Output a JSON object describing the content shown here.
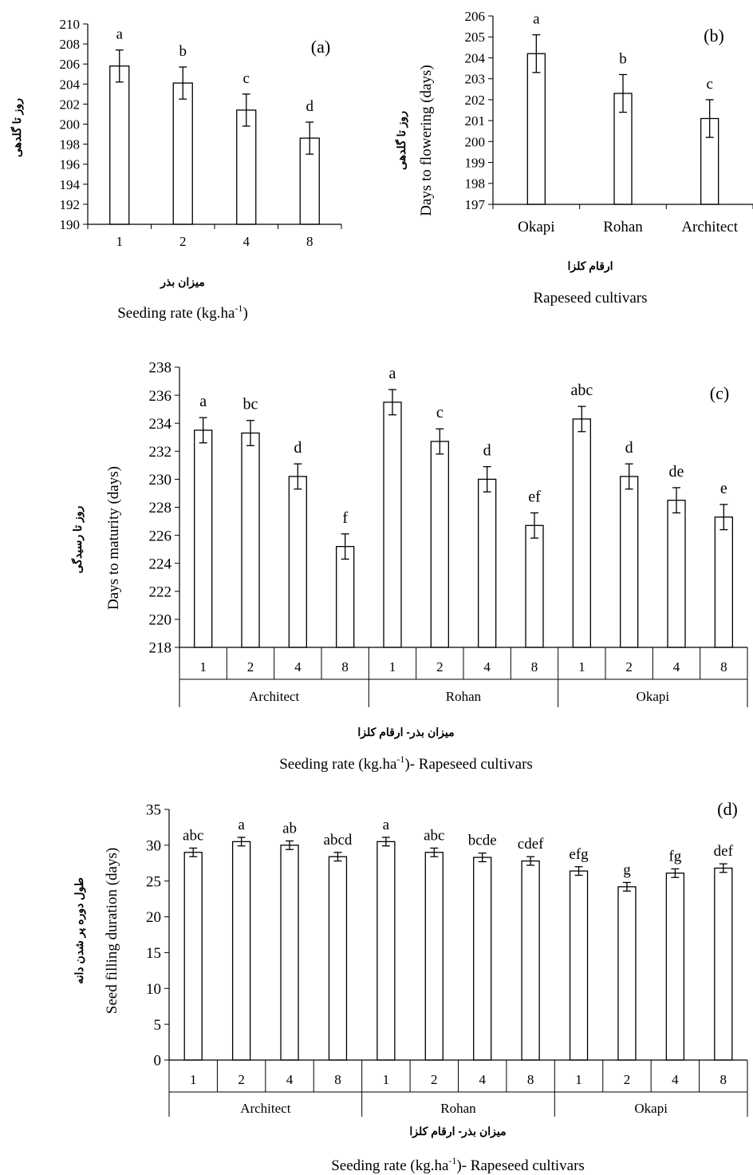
{
  "colors": {
    "bar_fill": "#ffffff",
    "stroke": "#000000",
    "background": "#ffffff"
  },
  "chart_data": [
    {
      "id": "a",
      "type": "bar",
      "panel_label": "(a)",
      "categories": [
        "1",
        "2",
        "4",
        "8"
      ],
      "values": [
        205.8,
        204.1,
        201.4,
        198.6
      ],
      "errors": [
        1.6,
        1.6,
        1.6,
        1.6
      ],
      "letters": [
        "a",
        "b",
        "c",
        "d"
      ],
      "ylim": [
        190,
        210
      ],
      "yticks": [
        190,
        192,
        194,
        196,
        198,
        200,
        202,
        204,
        206,
        208,
        210
      ],
      "ylabel_fa": "روز تا گلدهی",
      "ylabel_en": "",
      "xlabel_fa": "میزان بذر",
      "xlabel_en": "Seeding rate (kg.ha-1)",
      "xlabel_en_main": "Seeding rate (kg.ha",
      "xlabel_en_sup": "-1",
      "xlabel_en_tail": ")",
      "groups": [],
      "grid": false
    },
    {
      "id": "b",
      "type": "bar",
      "panel_label": "(b)",
      "categories": [
        "Okapi",
        "Rohan",
        "Architect"
      ],
      "values": [
        204.2,
        202.3,
        201.1
      ],
      "errors": [
        0.9,
        0.9,
        0.9
      ],
      "letters": [
        "a",
        "b",
        "c"
      ],
      "ylim": [
        197,
        206
      ],
      "yticks": [
        197,
        198,
        199,
        200,
        201,
        202,
        203,
        204,
        205,
        206
      ],
      "ylabel_fa": "روز تا گلدهی",
      "ylabel_en": "Days to flowering (days)",
      "xlabel_fa": "ارقام کلزا",
      "xlabel_en": "Rapeseed cultivars",
      "groups": [],
      "grid": false
    },
    {
      "id": "c",
      "type": "bar",
      "panel_label": "(c)",
      "categories": [
        "1",
        "2",
        "4",
        "8",
        "1",
        "2",
        "4",
        "8",
        "1",
        "2",
        "4",
        "8"
      ],
      "values": [
        233.5,
        233.3,
        230.2,
        225.2,
        235.5,
        232.7,
        230.0,
        226.7,
        234.3,
        230.2,
        228.5,
        227.3
      ],
      "errors": [
        0.9,
        0.9,
        0.9,
        0.9,
        0.9,
        0.9,
        0.9,
        0.9,
        0.9,
        0.9,
        0.9,
        0.9
      ],
      "letters": [
        "a",
        "bc",
        "d",
        "f",
        "a",
        "c",
        "d",
        "ef",
        "abc",
        "d",
        "de",
        "e"
      ],
      "ylim": [
        218,
        238
      ],
      "yticks": [
        218,
        220,
        222,
        224,
        226,
        228,
        230,
        232,
        234,
        236,
        238
      ],
      "ylabel_fa": "روز تا رسیدگی",
      "ylabel_en": "Days to maturity (days)",
      "xlabel_fa": "میزان بذر- ارقام کلزا",
      "xlabel_en": "Seeding rate (kg.ha-1)- Rapeseed cultivars",
      "xlabel_en_main": "Seeding rate (kg.ha",
      "xlabel_en_sup": "-1",
      "xlabel_en_tail": ")- Rapeseed cultivars",
      "groups": [
        "Architect",
        "Rohan",
        "Okapi"
      ],
      "grid": false
    },
    {
      "id": "d",
      "type": "bar",
      "panel_label": "(d)",
      "categories": [
        "1",
        "2",
        "4",
        "8",
        "1",
        "2",
        "4",
        "8",
        "1",
        "2",
        "4",
        "8"
      ],
      "values": [
        29.0,
        30.5,
        30.0,
        28.4,
        30.5,
        29.0,
        28.3,
        27.8,
        26.4,
        24.2,
        26.1,
        26.8
      ],
      "errors": [
        0.6,
        0.6,
        0.6,
        0.6,
        0.6,
        0.6,
        0.6,
        0.6,
        0.6,
        0.6,
        0.6,
        0.6
      ],
      "letters": [
        "abc",
        "a",
        "ab",
        "abcd",
        "a",
        "abc",
        "bcde",
        "cdef",
        "efg",
        "g",
        "fg",
        "def"
      ],
      "ylim": [
        0,
        35
      ],
      "yticks": [
        0,
        5,
        10,
        15,
        20,
        25,
        30,
        35
      ],
      "ylabel_fa": "طول دوره پر شدن دانه",
      "ylabel_en": "Seed filling duration (days)",
      "xlabel_fa": "میزان بذر- ارقام کلزا",
      "xlabel_en": "Seeding rate (kg.ha-1)- Rapeseed cultivars",
      "xlabel_en_main": "Seeding rate (kg.ha",
      "xlabel_en_sup": "-1",
      "xlabel_en_tail": ")- Rapeseed cultivars",
      "groups": [
        "Architect",
        "Rohan",
        "Okapi"
      ],
      "grid": false
    }
  ]
}
